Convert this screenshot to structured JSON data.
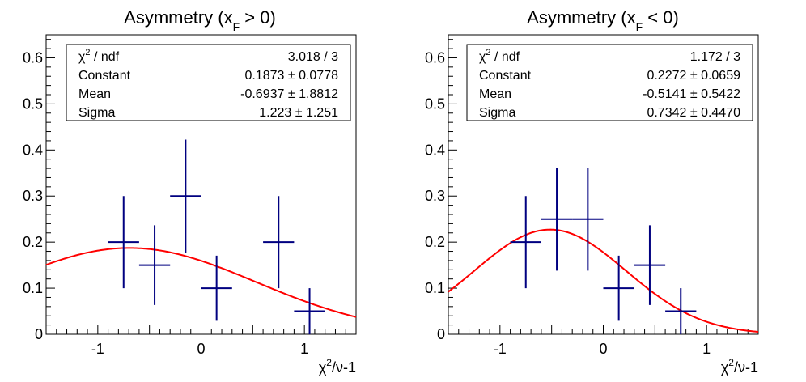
{
  "chart_data": [
    {
      "type": "scatter",
      "title_main": "Asymmetry (x",
      "title_sub": "F",
      "title_rest": " > 0)",
      "xlabel_pre": "χ",
      "xlabel_sup": "2",
      "xlabel_post": "/ν-1",
      "xlim": [
        -1.5,
        1.5
      ],
      "ylim": [
        0,
        0.65
      ],
      "xticks": [
        -1,
        0,
        1
      ],
      "yticks": [
        0,
        0.1,
        0.2,
        0.3,
        0.4,
        0.5,
        0.6
      ],
      "ytick_labels": [
        "0",
        "0.1",
        "0.2",
        "0.3",
        "0.4",
        "0.5",
        "0.6"
      ],
      "points": [
        {
          "x": -0.75,
          "y": 0.2,
          "xerr": 0.15,
          "yerr": 0.1
        },
        {
          "x": -0.45,
          "y": 0.15,
          "xerr": 0.15,
          "yerr": 0.0866
        },
        {
          "x": -0.15,
          "y": 0.3,
          "xerr": 0.15,
          "yerr": 0.1225
        },
        {
          "x": 0.15,
          "y": 0.1,
          "xerr": 0.15,
          "yerr": 0.0707
        },
        {
          "x": 0.75,
          "y": 0.2,
          "xerr": 0.15,
          "yerr": 0.1
        },
        {
          "x": 1.05,
          "y": 0.05,
          "xerr": 0.15,
          "yerr": 0.05
        }
      ],
      "fit": {
        "constant": 0.1873,
        "mean": -0.6937,
        "sigma": 1.223
      },
      "stats": [
        {
          "label_pre": "χ",
          "label_sup": "2",
          "label_post": " / ndf",
          "value": "3.018 / 3"
        },
        {
          "label": "Constant",
          "value": "0.1873 ± 0.0778"
        },
        {
          "label": "Mean",
          "value": "-0.6937 ± 1.8812"
        },
        {
          "label": "Sigma",
          "value": "1.223 ± 1.251"
        }
      ],
      "marker_color": "#000080",
      "fit_color": "#ff0000"
    },
    {
      "type": "scatter",
      "title_main": "Asymmetry (x",
      "title_sub": "F",
      "title_rest": " < 0)",
      "xlabel_pre": "χ",
      "xlabel_sup": "2",
      "xlabel_post": "/ν-1",
      "xlim": [
        -1.5,
        1.5
      ],
      "ylim": [
        0,
        0.65
      ],
      "xticks": [
        -1,
        0,
        1
      ],
      "yticks": [
        0,
        0.1,
        0.2,
        0.3,
        0.4,
        0.5,
        0.6
      ],
      "ytick_labels": [
        "0",
        "0.1",
        "0.2",
        "0.3",
        "0.4",
        "0.5",
        "0.6"
      ],
      "points": [
        {
          "x": -0.75,
          "y": 0.2,
          "xerr": 0.15,
          "yerr": 0.1
        },
        {
          "x": -0.45,
          "y": 0.25,
          "xerr": 0.15,
          "yerr": 0.1118
        },
        {
          "x": -0.15,
          "y": 0.25,
          "xerr": 0.15,
          "yerr": 0.1118
        },
        {
          "x": 0.15,
          "y": 0.1,
          "xerr": 0.15,
          "yerr": 0.0707
        },
        {
          "x": 0.45,
          "y": 0.15,
          "xerr": 0.15,
          "yerr": 0.0866
        },
        {
          "x": 0.75,
          "y": 0.05,
          "xerr": 0.15,
          "yerr": 0.05
        }
      ],
      "fit": {
        "constant": 0.2272,
        "mean": -0.5141,
        "sigma": 0.7342
      },
      "stats": [
        {
          "label_pre": "χ",
          "label_sup": "2",
          "label_post": " / ndf",
          "value": "1.172 / 3"
        },
        {
          "label": "Constant",
          "value": "0.2272 ± 0.0659"
        },
        {
          "label": "Mean",
          "value": "-0.5141 ± 0.5422"
        },
        {
          "label": "Sigma",
          "value": "0.7342 ± 0.4470"
        }
      ],
      "marker_color": "#000080",
      "fit_color": "#ff0000"
    }
  ]
}
